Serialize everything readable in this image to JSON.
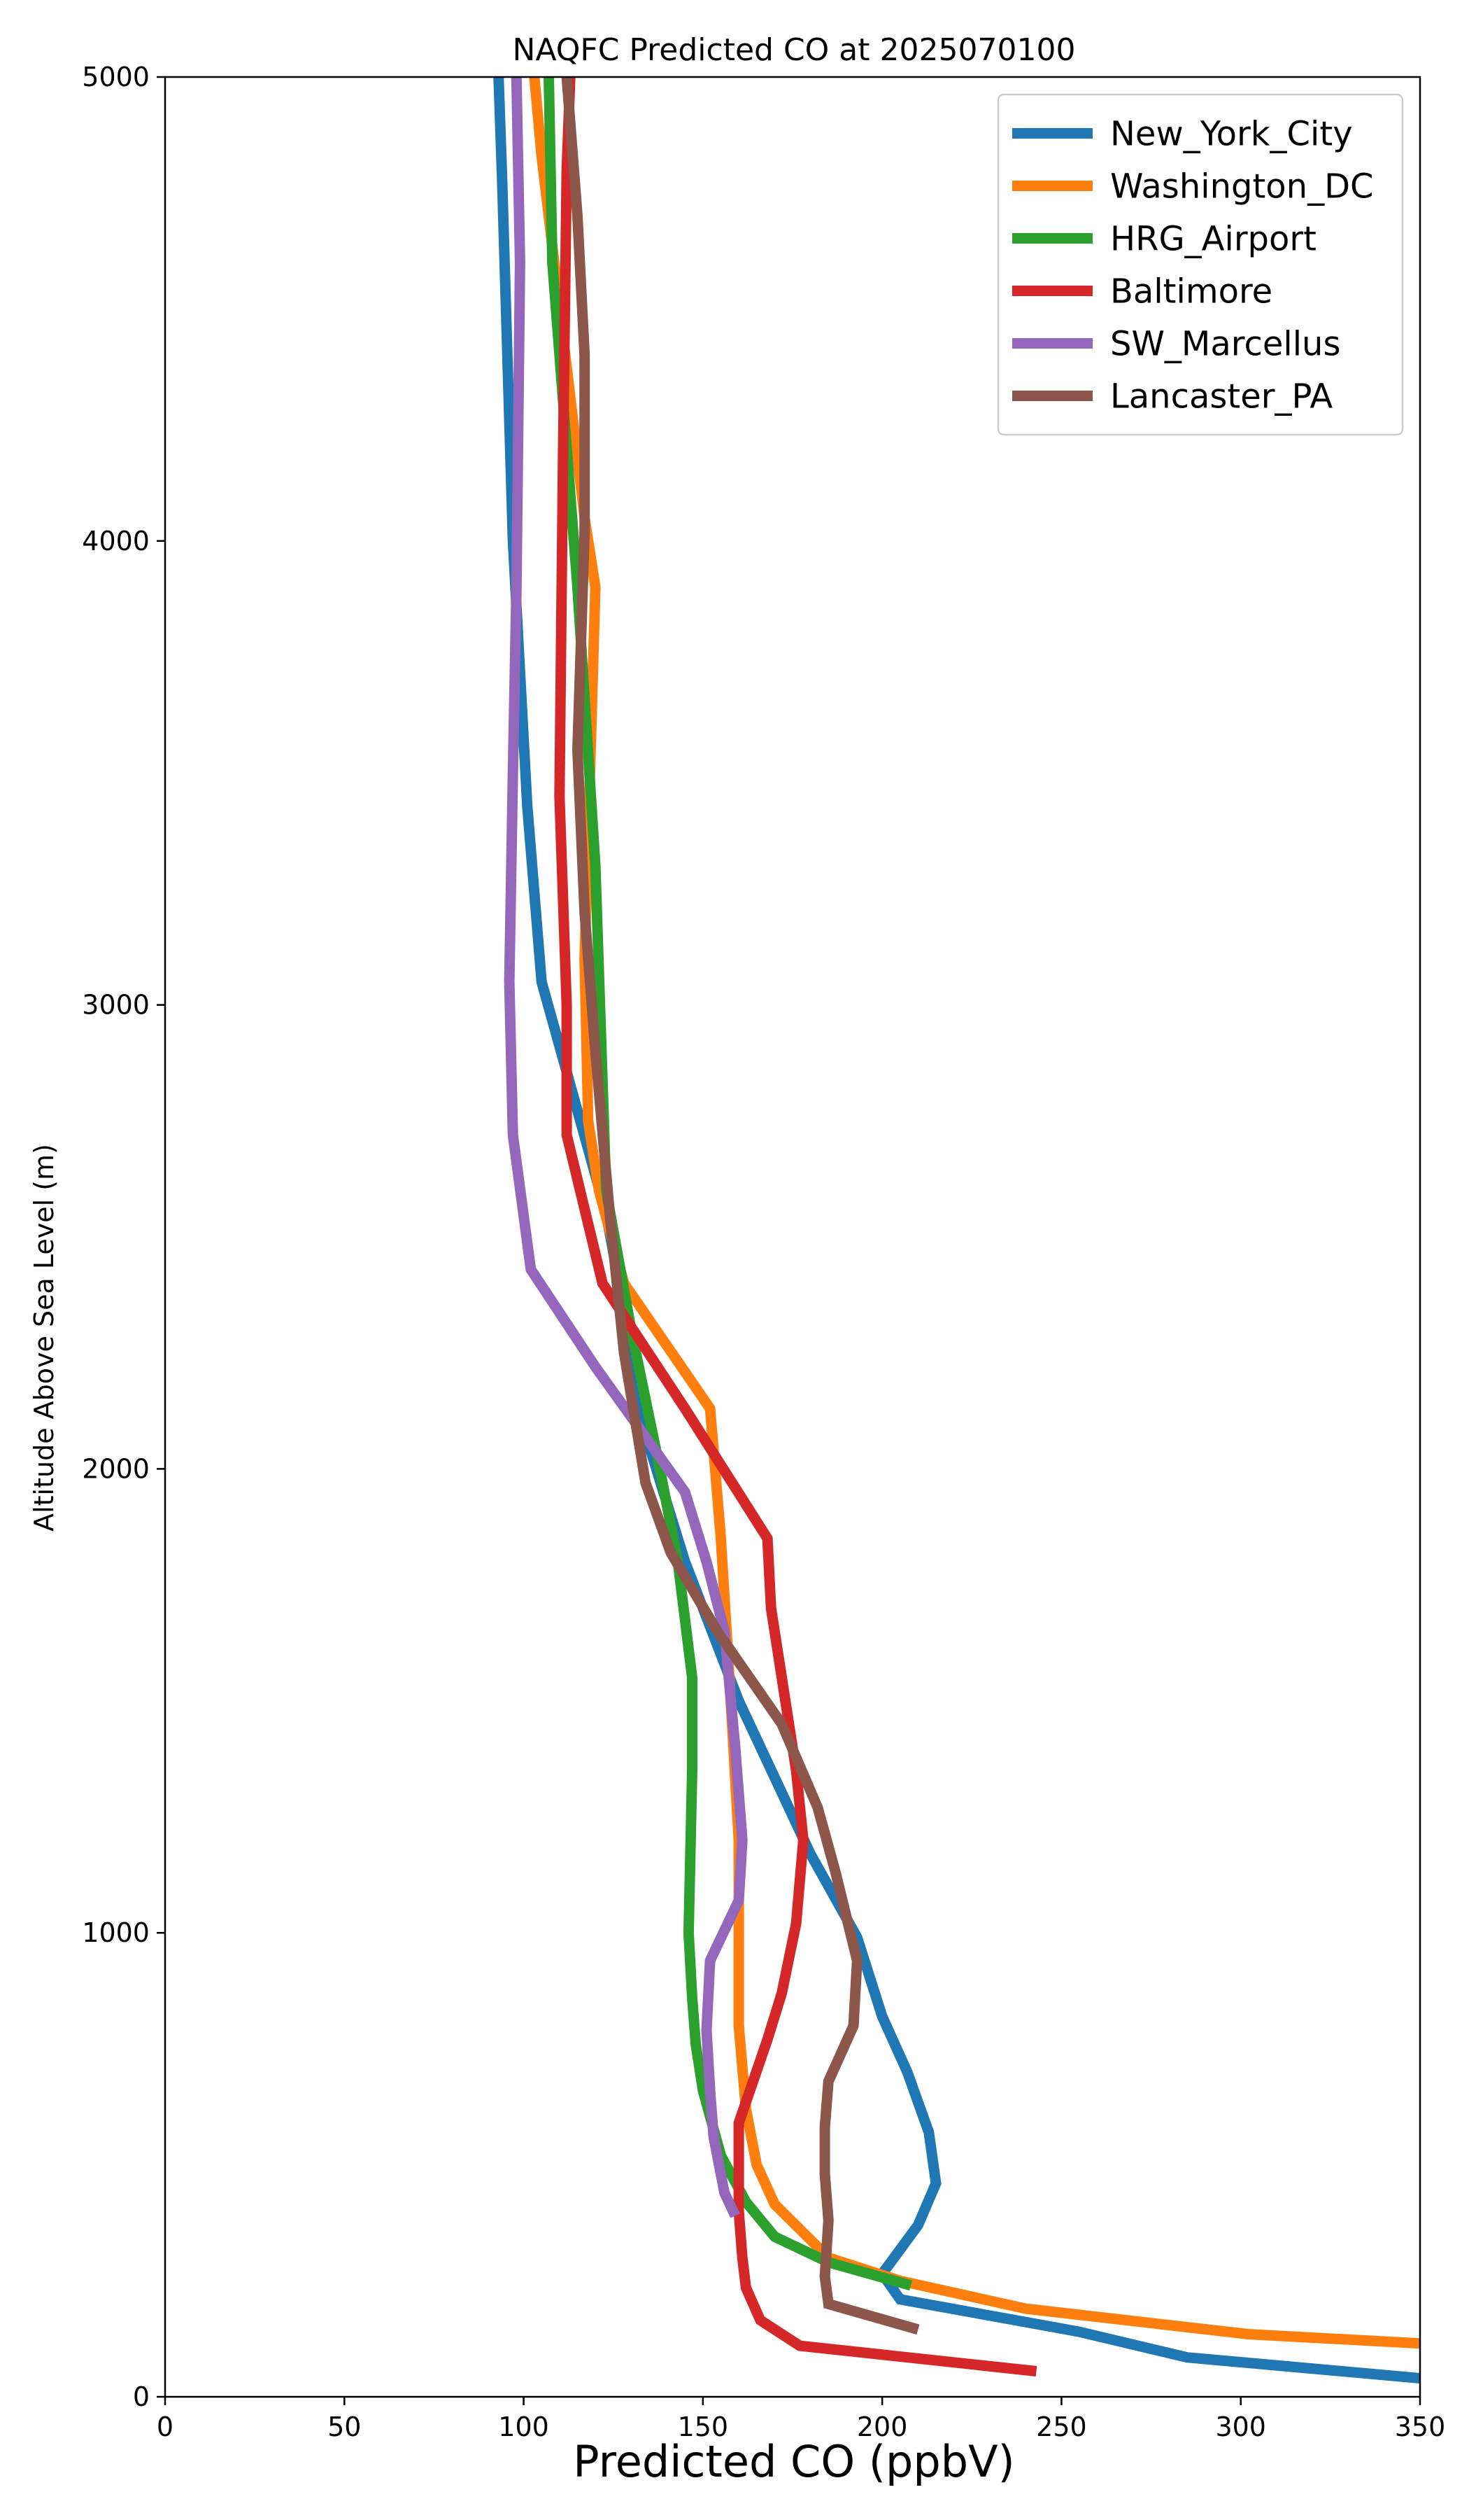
{
  "chart_data": {
    "type": "line",
    "title": "NAQFC Predicted CO at 2025070100",
    "xlabel": "Predicted CO (ppbV)",
    "ylabel": "Altitude Above Sea Level (m)",
    "xlim": [
      0,
      350
    ],
    "ylim": [
      0,
      5000
    ],
    "xticks": [
      0,
      50,
      100,
      150,
      200,
      250,
      300,
      350
    ],
    "yticks": [
      0,
      1000,
      2000,
      3000,
      4000,
      5000
    ],
    "grid": false,
    "legend_position": "top-right",
    "series": [
      {
        "name": "New_York_City",
        "color": "#1f77b4",
        "points": [
          [
            350,
            40
          ],
          [
            285,
            85
          ],
          [
            255,
            140
          ],
          [
            205,
            210
          ],
          [
            200,
            265
          ],
          [
            210,
            370
          ],
          [
            215,
            460
          ],
          [
            213,
            570
          ],
          [
            207,
            700
          ],
          [
            200,
            820
          ],
          [
            193,
            990
          ],
          [
            180,
            1170
          ],
          [
            160,
            1500
          ],
          [
            145,
            1800
          ],
          [
            135,
            2050
          ],
          [
            123,
            2550
          ],
          [
            105,
            3050
          ],
          [
            101,
            3430
          ],
          [
            97,
            4000
          ],
          [
            94,
            4780
          ],
          [
            93,
            5000
          ]
        ]
      },
      {
        "name": "Washington_DC",
        "color": "#ff7f0e",
        "points": [
          [
            350,
            115
          ],
          [
            302,
            135
          ],
          [
            240,
            190
          ],
          [
            205,
            250
          ],
          [
            185,
            300
          ],
          [
            170,
            415
          ],
          [
            165,
            500
          ],
          [
            162,
            620
          ],
          [
            160,
            800
          ],
          [
            160,
            1200
          ],
          [
            157,
            1600
          ],
          [
            155,
            1850
          ],
          [
            152,
            2130
          ],
          [
            128,
            2400
          ],
          [
            121,
            2600
          ],
          [
            118,
            2750
          ],
          [
            117,
            3100
          ],
          [
            120,
            3900
          ],
          [
            117,
            4050
          ],
          [
            105,
            4830
          ],
          [
            103,
            5000
          ]
        ]
      },
      {
        "name": "HRG_Airport",
        "color": "#2ca02c",
        "points": [
          [
            208,
            240
          ],
          [
            185,
            290
          ],
          [
            170,
            345
          ],
          [
            162,
            420
          ],
          [
            155,
            520
          ],
          [
            150,
            660
          ],
          [
            148,
            760
          ],
          [
            147,
            860
          ],
          [
            146,
            1000
          ],
          [
            147,
            1350
          ],
          [
            147,
            1550
          ],
          [
            143,
            1800
          ],
          [
            138,
            2000
          ],
          [
            130,
            2300
          ],
          [
            123,
            2600
          ],
          [
            120,
            3300
          ],
          [
            115,
            3900
          ],
          [
            111,
            4300
          ],
          [
            108,
            4600
          ],
          [
            107,
            5000
          ]
        ]
      },
      {
        "name": "Baltimore",
        "color": "#d62728",
        "points": [
          [
            243,
            55
          ],
          [
            177,
            110
          ],
          [
            166,
            165
          ],
          [
            162,
            235
          ],
          [
            161,
            300
          ],
          [
            160,
            400
          ],
          [
            160,
            500
          ],
          [
            160,
            590
          ],
          [
            168,
            770
          ],
          [
            172,
            870
          ],
          [
            176,
            1020
          ],
          [
            178,
            1200
          ],
          [
            176,
            1350
          ],
          [
            172,
            1550
          ],
          [
            169,
            1700
          ],
          [
            168,
            1850
          ],
          [
            145,
            2130
          ],
          [
            122,
            2400
          ],
          [
            112,
            2720
          ],
          [
            112,
            3000
          ],
          [
            110,
            3450
          ],
          [
            111,
            4200
          ],
          [
            112,
            4800
          ],
          [
            113,
            5000
          ]
        ]
      },
      {
        "name": "SW_Marcellus",
        "color": "#9467bd",
        "points": [
          [
            159,
            390
          ],
          [
            156,
            440
          ],
          [
            153,
            560
          ],
          [
            152,
            660
          ],
          [
            151,
            790
          ],
          [
            152,
            940
          ],
          [
            160,
            1070
          ],
          [
            161,
            1200
          ],
          [
            159,
            1400
          ],
          [
            156,
            1650
          ],
          [
            151,
            1800
          ],
          [
            145,
            1950
          ],
          [
            120,
            2220
          ],
          [
            102,
            2430
          ],
          [
            97,
            2720
          ],
          [
            96,
            3050
          ],
          [
            97,
            3500
          ],
          [
            98,
            3900
          ],
          [
            99,
            4600
          ],
          [
            98,
            5000
          ]
        ]
      },
      {
        "name": "Lancaster_PA",
        "color": "#8c564b",
        "points": [
          [
            210,
            145
          ],
          [
            185,
            200
          ],
          [
            184,
            260
          ],
          [
            185,
            380
          ],
          [
            184,
            480
          ],
          [
            184,
            580
          ],
          [
            185,
            680
          ],
          [
            192,
            800
          ],
          [
            193,
            940
          ],
          [
            187,
            1130
          ],
          [
            182,
            1270
          ],
          [
            172,
            1450
          ],
          [
            154,
            1650
          ],
          [
            141,
            1820
          ],
          [
            134,
            1970
          ],
          [
            128,
            2250
          ],
          [
            124,
            2550
          ],
          [
            120,
            2900
          ],
          [
            117,
            3200
          ],
          [
            115,
            3550
          ],
          [
            117,
            4020
          ],
          [
            117,
            4400
          ],
          [
            115,
            4700
          ],
          [
            112,
            5000
          ]
        ]
      }
    ]
  }
}
